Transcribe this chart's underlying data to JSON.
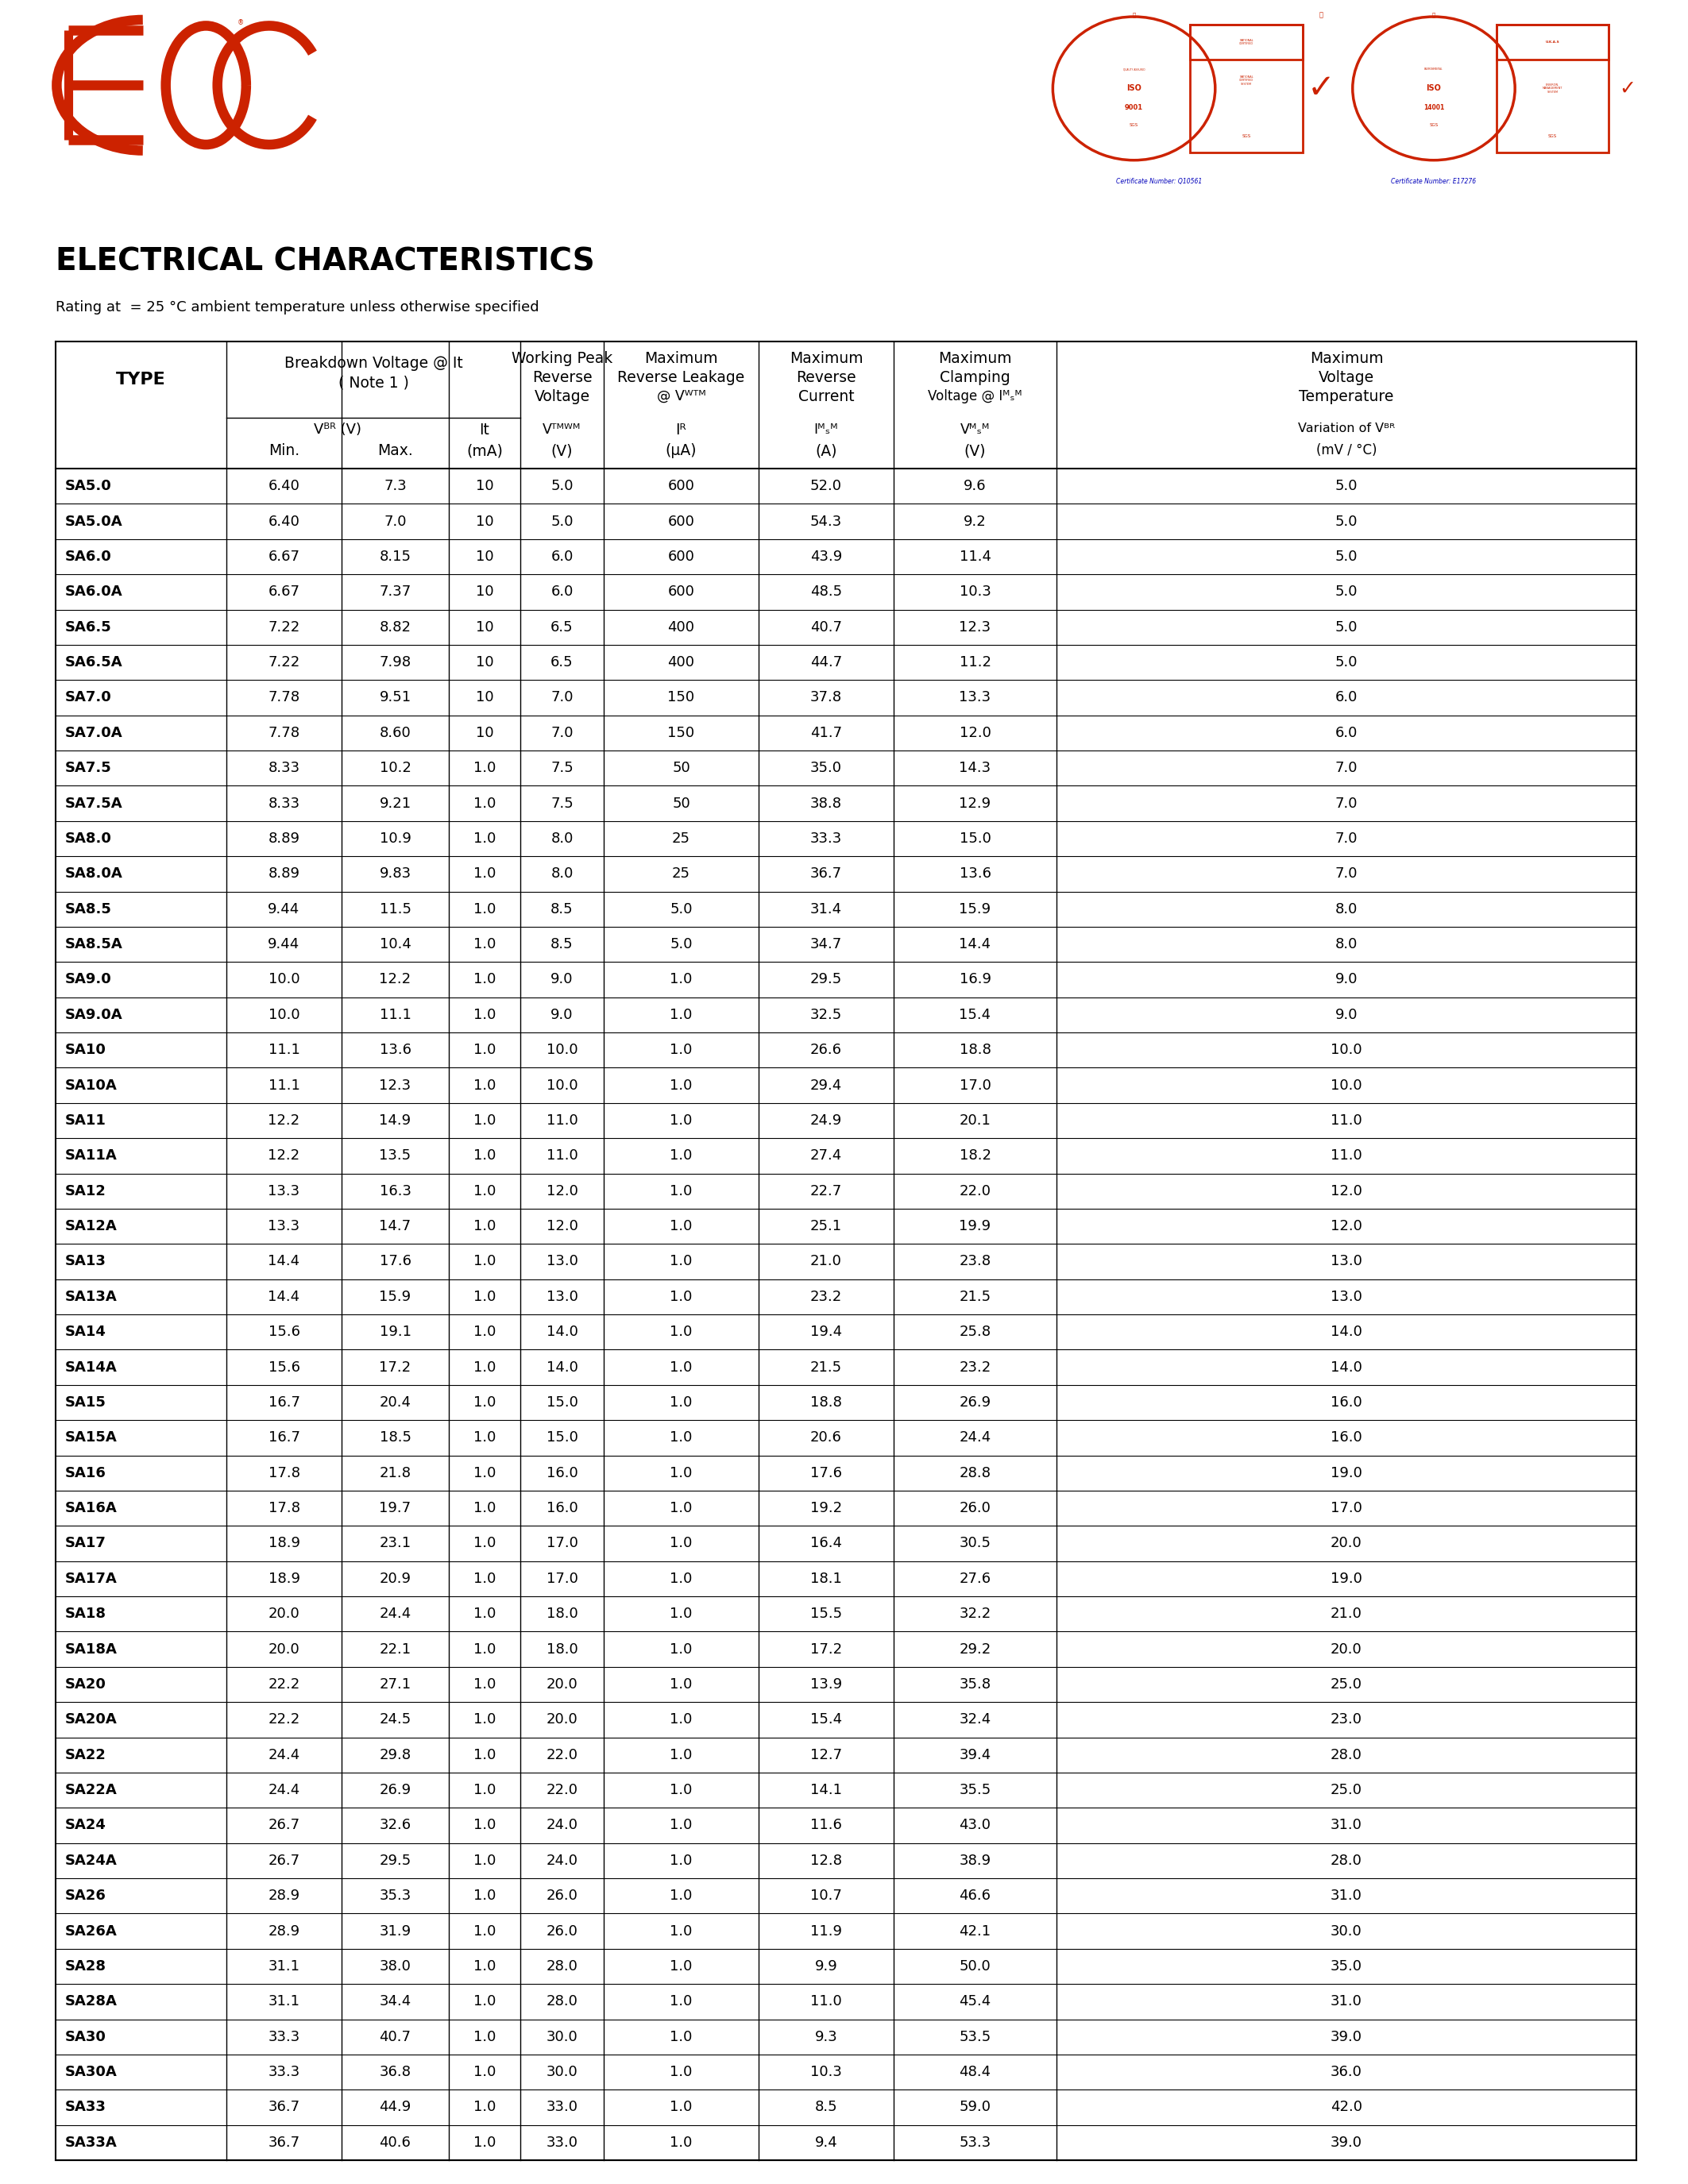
{
  "title": "ELECTRICAL CHARACTERISTICS",
  "subtitle": "Rating at  = 25 °C ambient temperature unless otherwise specified",
  "rows": [
    [
      "SA5.0",
      "6.40",
      "7.3",
      "10",
      "5.0",
      "600",
      "52.0",
      "9.6",
      "5.0"
    ],
    [
      "SA5.0A",
      "6.40",
      "7.0",
      "10",
      "5.0",
      "600",
      "54.3",
      "9.2",
      "5.0"
    ],
    [
      "SA6.0",
      "6.67",
      "8.15",
      "10",
      "6.0",
      "600",
      "43.9",
      "11.4",
      "5.0"
    ],
    [
      "SA6.0A",
      "6.67",
      "7.37",
      "10",
      "6.0",
      "600",
      "48.5",
      "10.3",
      "5.0"
    ],
    [
      "SA6.5",
      "7.22",
      "8.82",
      "10",
      "6.5",
      "400",
      "40.7",
      "12.3",
      "5.0"
    ],
    [
      "SA6.5A",
      "7.22",
      "7.98",
      "10",
      "6.5",
      "400",
      "44.7",
      "11.2",
      "5.0"
    ],
    [
      "SA7.0",
      "7.78",
      "9.51",
      "10",
      "7.0",
      "150",
      "37.8",
      "13.3",
      "6.0"
    ],
    [
      "SA7.0A",
      "7.78",
      "8.60",
      "10",
      "7.0",
      "150",
      "41.7",
      "12.0",
      "6.0"
    ],
    [
      "SA7.5",
      "8.33",
      "10.2",
      "1.0",
      "7.5",
      "50",
      "35.0",
      "14.3",
      "7.0"
    ],
    [
      "SA7.5A",
      "8.33",
      "9.21",
      "1.0",
      "7.5",
      "50",
      "38.8",
      "12.9",
      "7.0"
    ],
    [
      "SA8.0",
      "8.89",
      "10.9",
      "1.0",
      "8.0",
      "25",
      "33.3",
      "15.0",
      "7.0"
    ],
    [
      "SA8.0A",
      "8.89",
      "9.83",
      "1.0",
      "8.0",
      "25",
      "36.7",
      "13.6",
      "7.0"
    ],
    [
      "SA8.5",
      "9.44",
      "11.5",
      "1.0",
      "8.5",
      "5.0",
      "31.4",
      "15.9",
      "8.0"
    ],
    [
      "SA8.5A",
      "9.44",
      "10.4",
      "1.0",
      "8.5",
      "5.0",
      "34.7",
      "14.4",
      "8.0"
    ],
    [
      "SA9.0",
      "10.0",
      "12.2",
      "1.0",
      "9.0",
      "1.0",
      "29.5",
      "16.9",
      "9.0"
    ],
    [
      "SA9.0A",
      "10.0",
      "11.1",
      "1.0",
      "9.0",
      "1.0",
      "32.5",
      "15.4",
      "9.0"
    ],
    [
      "SA10",
      "11.1",
      "13.6",
      "1.0",
      "10.0",
      "1.0",
      "26.6",
      "18.8",
      "10.0"
    ],
    [
      "SA10A",
      "11.1",
      "12.3",
      "1.0",
      "10.0",
      "1.0",
      "29.4",
      "17.0",
      "10.0"
    ],
    [
      "SA11",
      "12.2",
      "14.9",
      "1.0",
      "11.0",
      "1.0",
      "24.9",
      "20.1",
      "11.0"
    ],
    [
      "SA11A",
      "12.2",
      "13.5",
      "1.0",
      "11.0",
      "1.0",
      "27.4",
      "18.2",
      "11.0"
    ],
    [
      "SA12",
      "13.3",
      "16.3",
      "1.0",
      "12.0",
      "1.0",
      "22.7",
      "22.0",
      "12.0"
    ],
    [
      "SA12A",
      "13.3",
      "14.7",
      "1.0",
      "12.0",
      "1.0",
      "25.1",
      "19.9",
      "12.0"
    ],
    [
      "SA13",
      "14.4",
      "17.6",
      "1.0",
      "13.0",
      "1.0",
      "21.0",
      "23.8",
      "13.0"
    ],
    [
      "SA13A",
      "14.4",
      "15.9",
      "1.0",
      "13.0",
      "1.0",
      "23.2",
      "21.5",
      "13.0"
    ],
    [
      "SA14",
      "15.6",
      "19.1",
      "1.0",
      "14.0",
      "1.0",
      "19.4",
      "25.8",
      "14.0"
    ],
    [
      "SA14A",
      "15.6",
      "17.2",
      "1.0",
      "14.0",
      "1.0",
      "21.5",
      "23.2",
      "14.0"
    ],
    [
      "SA15",
      "16.7",
      "20.4",
      "1.0",
      "15.0",
      "1.0",
      "18.8",
      "26.9",
      "16.0"
    ],
    [
      "SA15A",
      "16.7",
      "18.5",
      "1.0",
      "15.0",
      "1.0",
      "20.6",
      "24.4",
      "16.0"
    ],
    [
      "SA16",
      "17.8",
      "21.8",
      "1.0",
      "16.0",
      "1.0",
      "17.6",
      "28.8",
      "19.0"
    ],
    [
      "SA16A",
      "17.8",
      "19.7",
      "1.0",
      "16.0",
      "1.0",
      "19.2",
      "26.0",
      "17.0"
    ],
    [
      "SA17",
      "18.9",
      "23.1",
      "1.0",
      "17.0",
      "1.0",
      "16.4",
      "30.5",
      "20.0"
    ],
    [
      "SA17A",
      "18.9",
      "20.9",
      "1.0",
      "17.0",
      "1.0",
      "18.1",
      "27.6",
      "19.0"
    ],
    [
      "SA18",
      "20.0",
      "24.4",
      "1.0",
      "18.0",
      "1.0",
      "15.5",
      "32.2",
      "21.0"
    ],
    [
      "SA18A",
      "20.0",
      "22.1",
      "1.0",
      "18.0",
      "1.0",
      "17.2",
      "29.2",
      "20.0"
    ],
    [
      "SA20",
      "22.2",
      "27.1",
      "1.0",
      "20.0",
      "1.0",
      "13.9",
      "35.8",
      "25.0"
    ],
    [
      "SA20A",
      "22.2",
      "24.5",
      "1.0",
      "20.0",
      "1.0",
      "15.4",
      "32.4",
      "23.0"
    ],
    [
      "SA22",
      "24.4",
      "29.8",
      "1.0",
      "22.0",
      "1.0",
      "12.7",
      "39.4",
      "28.0"
    ],
    [
      "SA22A",
      "24.4",
      "26.9",
      "1.0",
      "22.0",
      "1.0",
      "14.1",
      "35.5",
      "25.0"
    ],
    [
      "SA24",
      "26.7",
      "32.6",
      "1.0",
      "24.0",
      "1.0",
      "11.6",
      "43.0",
      "31.0"
    ],
    [
      "SA24A",
      "26.7",
      "29.5",
      "1.0",
      "24.0",
      "1.0",
      "12.8",
      "38.9",
      "28.0"
    ],
    [
      "SA26",
      "28.9",
      "35.3",
      "1.0",
      "26.0",
      "1.0",
      "10.7",
      "46.6",
      "31.0"
    ],
    [
      "SA26A",
      "28.9",
      "31.9",
      "1.0",
      "26.0",
      "1.0",
      "11.9",
      "42.1",
      "30.0"
    ],
    [
      "SA28",
      "31.1",
      "38.0",
      "1.0",
      "28.0",
      "1.0",
      "9.9",
      "50.0",
      "35.0"
    ],
    [
      "SA28A",
      "31.1",
      "34.4",
      "1.0",
      "28.0",
      "1.0",
      "11.0",
      "45.4",
      "31.0"
    ],
    [
      "SA30",
      "33.3",
      "40.7",
      "1.0",
      "30.0",
      "1.0",
      "9.3",
      "53.5",
      "39.0"
    ],
    [
      "SA30A",
      "33.3",
      "36.8",
      "1.0",
      "30.0",
      "1.0",
      "10.3",
      "48.4",
      "36.0"
    ],
    [
      "SA33",
      "36.7",
      "44.9",
      "1.0",
      "33.0",
      "1.0",
      "8.5",
      "59.0",
      "42.0"
    ],
    [
      "SA33A",
      "36.7",
      "40.6",
      "1.0",
      "33.0",
      "1.0",
      "9.4",
      "53.3",
      "39.0"
    ]
  ],
  "bg_color": "#ffffff",
  "text_color": "#000000",
  "blue_bar_color": "#1a1a8c",
  "red_color": "#cc2200",
  "cert1_text": "Certificate Number: Q10561",
  "cert2_text": "Certificate Number: E17276",
  "blue_cert_color": "#0000bb"
}
